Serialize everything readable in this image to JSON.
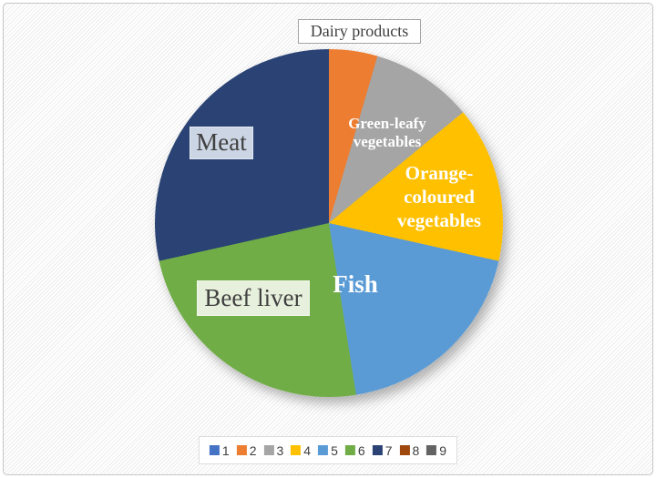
{
  "chart_data": {
    "type": "pie",
    "title": "",
    "unit": "percent",
    "start_angle_deg": 0,
    "direction": "clockwise",
    "legend_position": "bottom",
    "slices": [
      {
        "legend_label": "1",
        "label": "",
        "value": 0,
        "color": "#4472C4"
      },
      {
        "legend_label": "2",
        "label": "Dairy products",
        "value": 4.5,
        "color": "#ED7D31"
      },
      {
        "legend_label": "3",
        "label": "Green-leafy vegetables",
        "value": 9.5,
        "color": "#A5A5A5"
      },
      {
        "legend_label": "4",
        "label": "Orange-coloured vegetables",
        "value": 14.5,
        "color": "#FFC000"
      },
      {
        "legend_label": "5",
        "label": "Fish",
        "value": 19,
        "color": "#5B9BD5"
      },
      {
        "legend_label": "6",
        "label": "Beef liver",
        "value": 24,
        "color": "#70AD47"
      },
      {
        "legend_label": "7",
        "label": "Meat",
        "value": 28.5,
        "color": "#2A4374"
      },
      {
        "legend_label": "8",
        "label": "",
        "value": 0,
        "color": "#9E480E"
      },
      {
        "legend_label": "9",
        "label": "",
        "value": 0,
        "color": "#636363"
      }
    ]
  }
}
